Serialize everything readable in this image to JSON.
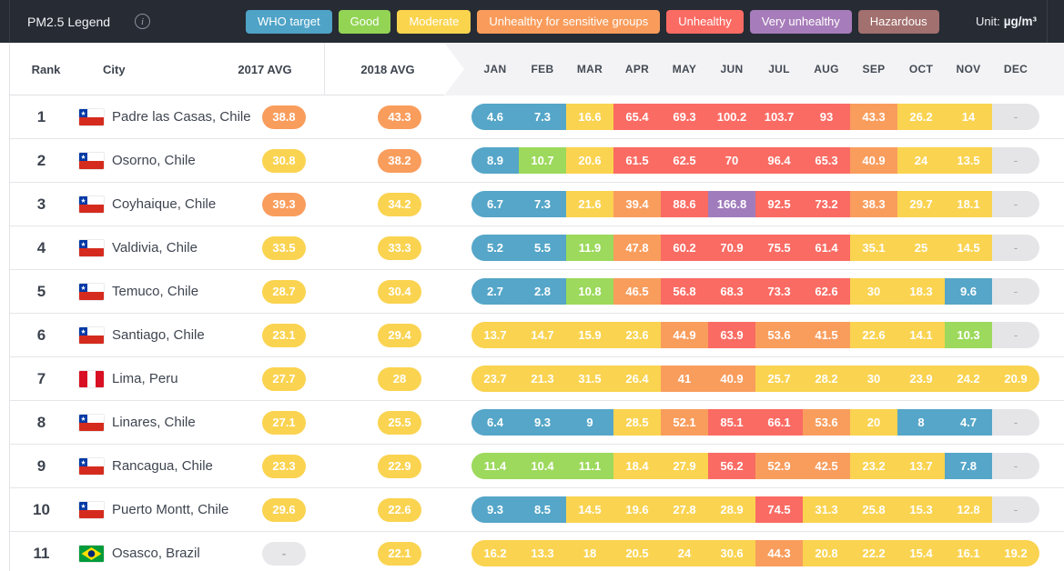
{
  "topbar": {
    "title": "PM2.5 Legend",
    "unit_label": "Unit:",
    "unit_value": "µg/m³",
    "legend": [
      {
        "label": "WHO target",
        "color": "#4fa3c7"
      },
      {
        "label": "Good",
        "color": "#93d455"
      },
      {
        "label": "Moderate",
        "color": "#fbd44e"
      },
      {
        "label": "Unhealthy for sensitive groups",
        "color": "#f99c5b"
      },
      {
        "label": "Unhealthy",
        "color": "#fa6b63"
      },
      {
        "label": "Very unhealthy",
        "color": "#a77cba"
      },
      {
        "label": "Hazardous",
        "color": "#a2706e"
      }
    ]
  },
  "colors": {
    "blue": "#55a6c8",
    "green": "#9cd95c",
    "yellow": "#fad350",
    "orange": "#f99d5d",
    "red": "#fa6b63",
    "purple": "#a07cbc",
    "empty": "#e5e5e8",
    "badge_empty": "#e8e8eb"
  },
  "table": {
    "headers": {
      "rank": "Rank",
      "city": "City",
      "avg2017": "2017 AVG",
      "avg2018": "2018 AVG"
    },
    "months": [
      "JAN",
      "FEB",
      "MAR",
      "APR",
      "MAY",
      "JUN",
      "JUL",
      "AUG",
      "SEP",
      "OCT",
      "NOV",
      "DEC"
    ],
    "empty_value": "-",
    "rows": [
      {
        "rank": "1",
        "flag": "chile",
        "city": "Padre las Casas, Chile",
        "avg2017": [
          "38.8",
          "orange"
        ],
        "avg2018": [
          "43.3",
          "orange"
        ],
        "months": [
          [
            "4.6",
            "blue"
          ],
          [
            "7.3",
            "blue"
          ],
          [
            "16.6",
            "yellow"
          ],
          [
            "65.4",
            "red"
          ],
          [
            "69.3",
            "red"
          ],
          [
            "100.2",
            "red"
          ],
          [
            "103.7",
            "red"
          ],
          [
            "93",
            "red"
          ],
          [
            "43.3",
            "orange"
          ],
          [
            "26.2",
            "yellow"
          ],
          [
            "14",
            "yellow"
          ],
          [
            "-",
            "empty"
          ]
        ]
      },
      {
        "rank": "2",
        "flag": "chile",
        "city": "Osorno, Chile",
        "avg2017": [
          "30.8",
          "yellow"
        ],
        "avg2018": [
          "38.2",
          "orange"
        ],
        "months": [
          [
            "8.9",
            "blue"
          ],
          [
            "10.7",
            "green"
          ],
          [
            "20.6",
            "yellow"
          ],
          [
            "61.5",
            "red"
          ],
          [
            "62.5",
            "red"
          ],
          [
            "70",
            "red"
          ],
          [
            "96.4",
            "red"
          ],
          [
            "65.3",
            "red"
          ],
          [
            "40.9",
            "orange"
          ],
          [
            "24",
            "yellow"
          ],
          [
            "13.5",
            "yellow"
          ],
          [
            "-",
            "empty"
          ]
        ]
      },
      {
        "rank": "3",
        "flag": "chile",
        "city": "Coyhaique, Chile",
        "avg2017": [
          "39.3",
          "orange"
        ],
        "avg2018": [
          "34.2",
          "yellow"
        ],
        "months": [
          [
            "6.7",
            "blue"
          ],
          [
            "7.3",
            "blue"
          ],
          [
            "21.6",
            "yellow"
          ],
          [
            "39.4",
            "orange"
          ],
          [
            "88.6",
            "red"
          ],
          [
            "166.8",
            "purple"
          ],
          [
            "92.5",
            "red"
          ],
          [
            "73.2",
            "red"
          ],
          [
            "38.3",
            "orange"
          ],
          [
            "29.7",
            "yellow"
          ],
          [
            "18.1",
            "yellow"
          ],
          [
            "-",
            "empty"
          ]
        ]
      },
      {
        "rank": "4",
        "flag": "chile",
        "city": "Valdivia, Chile",
        "avg2017": [
          "33.5",
          "yellow"
        ],
        "avg2018": [
          "33.3",
          "yellow"
        ],
        "months": [
          [
            "5.2",
            "blue"
          ],
          [
            "5.5",
            "blue"
          ],
          [
            "11.9",
            "green"
          ],
          [
            "47.8",
            "orange"
          ],
          [
            "60.2",
            "red"
          ],
          [
            "70.9",
            "red"
          ],
          [
            "75.5",
            "red"
          ],
          [
            "61.4",
            "red"
          ],
          [
            "35.1",
            "yellow"
          ],
          [
            "25",
            "yellow"
          ],
          [
            "14.5",
            "yellow"
          ],
          [
            "-",
            "empty"
          ]
        ]
      },
      {
        "rank": "5",
        "flag": "chile",
        "city": "Temuco, Chile",
        "avg2017": [
          "28.7",
          "yellow"
        ],
        "avg2018": [
          "30.4",
          "yellow"
        ],
        "months": [
          [
            "2.7",
            "blue"
          ],
          [
            "2.8",
            "blue"
          ],
          [
            "10.8",
            "green"
          ],
          [
            "46.5",
            "orange"
          ],
          [
            "56.8",
            "red"
          ],
          [
            "68.3",
            "red"
          ],
          [
            "73.3",
            "red"
          ],
          [
            "62.6",
            "red"
          ],
          [
            "30",
            "yellow"
          ],
          [
            "18.3",
            "yellow"
          ],
          [
            "9.6",
            "blue"
          ],
          [
            "-",
            "empty"
          ]
        ]
      },
      {
        "rank": "6",
        "flag": "chile",
        "city": "Santiago, Chile",
        "avg2017": [
          "23.1",
          "yellow"
        ],
        "avg2018": [
          "29.4",
          "yellow"
        ],
        "months": [
          [
            "13.7",
            "yellow"
          ],
          [
            "14.7",
            "yellow"
          ],
          [
            "15.9",
            "yellow"
          ],
          [
            "23.6",
            "yellow"
          ],
          [
            "44.9",
            "orange"
          ],
          [
            "63.9",
            "red"
          ],
          [
            "53.6",
            "orange"
          ],
          [
            "41.5",
            "orange"
          ],
          [
            "22.6",
            "yellow"
          ],
          [
            "14.1",
            "yellow"
          ],
          [
            "10.3",
            "green"
          ],
          [
            "-",
            "empty"
          ]
        ]
      },
      {
        "rank": "7",
        "flag": "peru",
        "city": "Lima, Peru",
        "avg2017": [
          "27.7",
          "yellow"
        ],
        "avg2018": [
          "28",
          "yellow"
        ],
        "months": [
          [
            "23.7",
            "yellow"
          ],
          [
            "21.3",
            "yellow"
          ],
          [
            "31.5",
            "yellow"
          ],
          [
            "26.4",
            "yellow"
          ],
          [
            "41",
            "orange"
          ],
          [
            "40.9",
            "orange"
          ],
          [
            "25.7",
            "yellow"
          ],
          [
            "28.2",
            "yellow"
          ],
          [
            "30",
            "yellow"
          ],
          [
            "23.9",
            "yellow"
          ],
          [
            "24.2",
            "yellow"
          ],
          [
            "20.9",
            "yellow"
          ]
        ]
      },
      {
        "rank": "8",
        "flag": "chile",
        "city": "Linares, Chile",
        "avg2017": [
          "27.1",
          "yellow"
        ],
        "avg2018": [
          "25.5",
          "yellow"
        ],
        "months": [
          [
            "6.4",
            "blue"
          ],
          [
            "9.3",
            "blue"
          ],
          [
            "9",
            "blue"
          ],
          [
            "28.5",
            "yellow"
          ],
          [
            "52.1",
            "orange"
          ],
          [
            "85.1",
            "red"
          ],
          [
            "66.1",
            "red"
          ],
          [
            "53.6",
            "orange"
          ],
          [
            "20",
            "yellow"
          ],
          [
            "8",
            "blue"
          ],
          [
            "4.7",
            "blue"
          ],
          [
            "-",
            "empty"
          ]
        ]
      },
      {
        "rank": "9",
        "flag": "chile",
        "city": "Rancagua, Chile",
        "avg2017": [
          "23.3",
          "yellow"
        ],
        "avg2018": [
          "22.9",
          "yellow"
        ],
        "months": [
          [
            "11.4",
            "green"
          ],
          [
            "10.4",
            "green"
          ],
          [
            "11.1",
            "green"
          ],
          [
            "18.4",
            "yellow"
          ],
          [
            "27.9",
            "yellow"
          ],
          [
            "56.2",
            "red"
          ],
          [
            "52.9",
            "orange"
          ],
          [
            "42.5",
            "orange"
          ],
          [
            "23.2",
            "yellow"
          ],
          [
            "13.7",
            "yellow"
          ],
          [
            "7.8",
            "blue"
          ],
          [
            "-",
            "empty"
          ]
        ]
      },
      {
        "rank": "10",
        "flag": "chile",
        "city": "Puerto Montt, Chile",
        "avg2017": [
          "29.6",
          "yellow"
        ],
        "avg2018": [
          "22.6",
          "yellow"
        ],
        "months": [
          [
            "9.3",
            "blue"
          ],
          [
            "8.5",
            "blue"
          ],
          [
            "14.5",
            "yellow"
          ],
          [
            "19.6",
            "yellow"
          ],
          [
            "27.8",
            "yellow"
          ],
          [
            "28.9",
            "yellow"
          ],
          [
            "74.5",
            "red"
          ],
          [
            "31.3",
            "yellow"
          ],
          [
            "25.8",
            "yellow"
          ],
          [
            "15.3",
            "yellow"
          ],
          [
            "12.8",
            "yellow"
          ],
          [
            "-",
            "empty"
          ]
        ]
      },
      {
        "rank": "11",
        "flag": "brazil",
        "city": "Osasco, Brazil",
        "avg2017": [
          "-",
          "empty"
        ],
        "avg2018": [
          "22.1",
          "yellow"
        ],
        "months": [
          [
            "16.2",
            "yellow"
          ],
          [
            "13.3",
            "yellow"
          ],
          [
            "18",
            "yellow"
          ],
          [
            "20.5",
            "yellow"
          ],
          [
            "24",
            "yellow"
          ],
          [
            "30.6",
            "yellow"
          ],
          [
            "44.3",
            "orange"
          ],
          [
            "20.8",
            "yellow"
          ],
          [
            "22.2",
            "yellow"
          ],
          [
            "15.4",
            "yellow"
          ],
          [
            "16.1",
            "yellow"
          ],
          [
            "19.2",
            "yellow"
          ]
        ]
      }
    ]
  }
}
